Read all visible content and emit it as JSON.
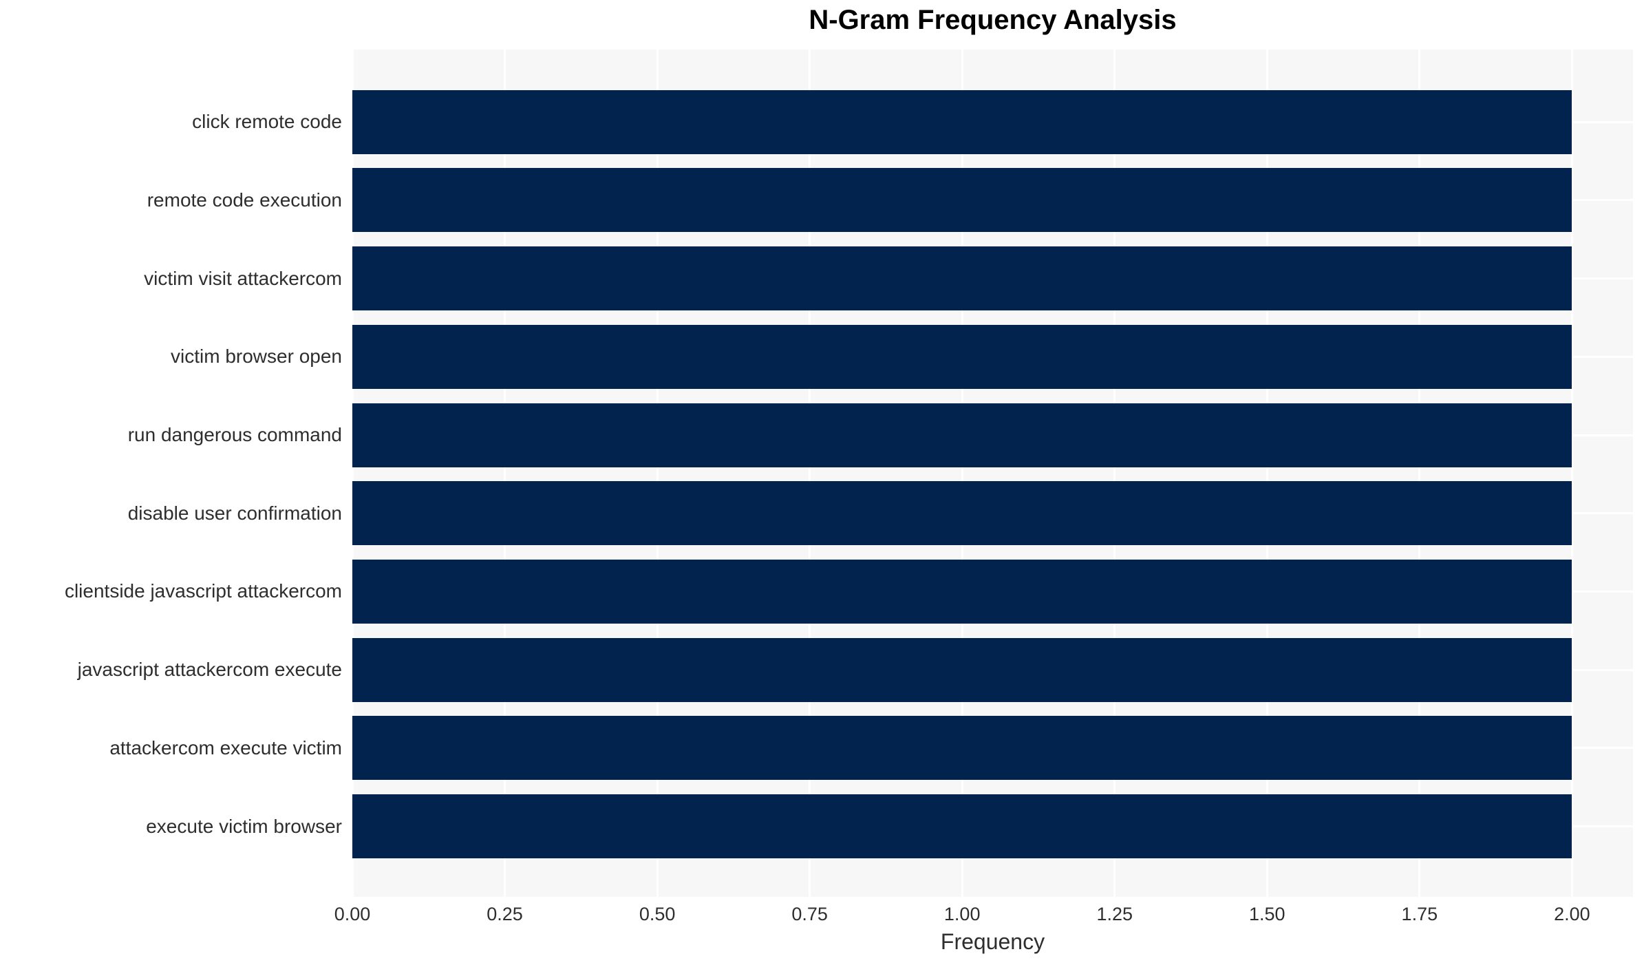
{
  "chart_data": {
    "type": "bar",
    "orientation": "horizontal",
    "title": "N-Gram Frequency Analysis",
    "xlabel": "Frequency",
    "ylabel": "",
    "categories": [
      "click remote code",
      "remote code execution",
      "victim visit attackercom",
      "victim browser open",
      "run dangerous command",
      "disable user confirmation",
      "clientside javascript attackercom",
      "javascript attackercom execute",
      "attackercom execute victim",
      "execute victim browser"
    ],
    "values": [
      2,
      2,
      2,
      2,
      2,
      2,
      2,
      2,
      2,
      2
    ],
    "xlim": [
      0,
      2.1
    ],
    "xticks": [
      0.0,
      0.25,
      0.5,
      0.75,
      1.0,
      1.25,
      1.5,
      1.75,
      2.0
    ],
    "xtick_labels": [
      "0.00",
      "0.25",
      "0.50",
      "0.75",
      "1.00",
      "1.25",
      "1.50",
      "1.75",
      "2.00"
    ],
    "grid": true,
    "legend": false,
    "colors": {
      "bar": "#02234D",
      "plot_background": "#F7F7F7",
      "figure_background": "#FFFFFF",
      "gridline": "#FFFFFF",
      "title_text": "#000000",
      "tick_text": "#2E2E2E"
    }
  }
}
